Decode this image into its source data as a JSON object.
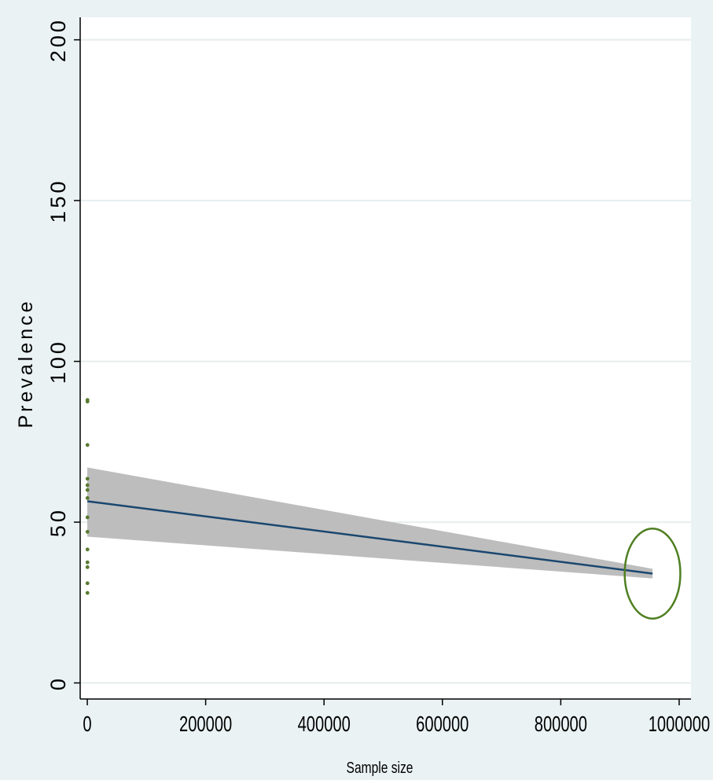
{
  "chart_data": {
    "type": "scatter",
    "title": "",
    "xlabel": "Sample size",
    "ylabel": "Prevalence",
    "xlim": [
      -12000,
      1020000
    ],
    "ylim": [
      -5,
      207
    ],
    "grid": true,
    "legend": "none",
    "x_ticks": [
      0,
      200000,
      400000,
      600000,
      800000,
      1000000
    ],
    "x_tick_labels": [
      "0",
      "200000",
      "400000",
      "600000",
      "800000",
      "1000000"
    ],
    "y_ticks": [
      0,
      50,
      100,
      150,
      200
    ],
    "y_tick_labels": [
      "0",
      "50",
      "100",
      "150",
      "200"
    ],
    "series": [
      {
        "kind": "points",
        "points": [
          {
            "x": 300,
            "y": 88
          },
          {
            "x": 300,
            "y": 87.5
          },
          {
            "x": 300,
            "y": 74
          },
          {
            "x": 300,
            "y": 63.5
          },
          {
            "x": 300,
            "y": 61.5
          },
          {
            "x": 300,
            "y": 60
          },
          {
            "x": 300,
            "y": 57.5
          },
          {
            "x": 300,
            "y": 51.5
          },
          {
            "x": 300,
            "y": 47
          },
          {
            "x": 300,
            "y": 41.5
          },
          {
            "x": 300,
            "y": 37.5
          },
          {
            "x": 300,
            "y": 36
          },
          {
            "x": 300,
            "y": 31
          },
          {
            "x": 300,
            "y": 28
          }
        ]
      },
      {
        "kind": "fit-line",
        "x": [
          0,
          955000
        ],
        "y": [
          56.5,
          34
        ]
      },
      {
        "kind": "confidence-band",
        "x": [
          0,
          955000
        ],
        "upper": [
          67,
          35.5
        ],
        "lower": [
          45.5,
          32.5
        ]
      }
    ],
    "annotations": [
      {
        "kind": "ellipse-highlight",
        "cx": 955000,
        "cy": 34,
        "rx": 47000,
        "ry": 14
      }
    ],
    "colors": {
      "background": "#eaf2f3",
      "plot_area": "#ffffff",
      "grid": "#e6eeee",
      "points": "#5a7a30",
      "fit_line": "#1a476f",
      "band": "#bdbdbd",
      "highlight": "#4f7f22"
    }
  }
}
